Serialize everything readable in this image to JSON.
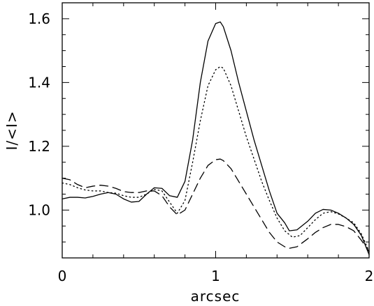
{
  "chart_data": {
    "type": "line",
    "title": "",
    "xlabel": "arcsec",
    "ylabel": "I/<I>",
    "xlim": [
      0,
      2
    ],
    "ylim": [
      0.85,
      1.65
    ],
    "grid": false,
    "legend": "none",
    "x_ticks": [
      {
        "value": 0,
        "label": "0"
      },
      {
        "value": 1,
        "label": "1"
      },
      {
        "value": 2,
        "label": "2"
      }
    ],
    "y_ticks": [
      {
        "value": 1.0,
        "label": "1.0"
      },
      {
        "value": 1.2,
        "label": "1.2"
      },
      {
        "value": 1.4,
        "label": "1.4"
      },
      {
        "value": 1.6,
        "label": "1.6"
      }
    ],
    "x_minor_step": 0.2,
    "y_minor_step": 0.05,
    "series": [
      {
        "style": "solid",
        "color": "#000000",
        "points": [
          [
            0.0,
            1.035
          ],
          [
            0.05,
            1.04
          ],
          [
            0.1,
            1.04
          ],
          [
            0.15,
            1.038
          ],
          [
            0.2,
            1.043
          ],
          [
            0.25,
            1.05
          ],
          [
            0.3,
            1.055
          ],
          [
            0.35,
            1.05
          ],
          [
            0.4,
            1.035
          ],
          [
            0.45,
            1.025
          ],
          [
            0.5,
            1.027
          ],
          [
            0.55,
            1.05
          ],
          [
            0.6,
            1.07
          ],
          [
            0.65,
            1.068
          ],
          [
            0.7,
            1.045
          ],
          [
            0.75,
            1.04
          ],
          [
            0.8,
            1.09
          ],
          [
            0.85,
            1.22
          ],
          [
            0.9,
            1.4
          ],
          [
            0.95,
            1.53
          ],
          [
            1.0,
            1.585
          ],
          [
            1.03,
            1.59
          ],
          [
            1.05,
            1.575
          ],
          [
            1.1,
            1.5
          ],
          [
            1.15,
            1.4
          ],
          [
            1.2,
            1.31
          ],
          [
            1.25,
            1.22
          ],
          [
            1.3,
            1.14
          ],
          [
            1.35,
            1.06
          ],
          [
            1.4,
            0.99
          ],
          [
            1.45,
            0.96
          ],
          [
            1.48,
            0.935
          ],
          [
            1.53,
            0.938
          ],
          [
            1.6,
            0.965
          ],
          [
            1.65,
            0.99
          ],
          [
            1.7,
            1.002
          ],
          [
            1.75,
            1.0
          ],
          [
            1.8,
            0.99
          ],
          [
            1.85,
            0.975
          ],
          [
            1.9,
            0.955
          ],
          [
            1.95,
            0.92
          ],
          [
            2.0,
            0.86
          ]
        ]
      },
      {
        "style": "dotted",
        "color": "#000000",
        "points": [
          [
            0.0,
            1.085
          ],
          [
            0.05,
            1.08
          ],
          [
            0.1,
            1.07
          ],
          [
            0.15,
            1.063
          ],
          [
            0.2,
            1.06
          ],
          [
            0.25,
            1.06
          ],
          [
            0.3,
            1.055
          ],
          [
            0.35,
            1.053
          ],
          [
            0.4,
            1.045
          ],
          [
            0.45,
            1.04
          ],
          [
            0.5,
            1.04
          ],
          [
            0.55,
            1.05
          ],
          [
            0.6,
            1.065
          ],
          [
            0.65,
            1.06
          ],
          [
            0.7,
            1.025
          ],
          [
            0.75,
            0.99
          ],
          [
            0.8,
            1.03
          ],
          [
            0.85,
            1.15
          ],
          [
            0.9,
            1.28
          ],
          [
            0.95,
            1.39
          ],
          [
            1.0,
            1.44
          ],
          [
            1.03,
            1.45
          ],
          [
            1.05,
            1.445
          ],
          [
            1.1,
            1.39
          ],
          [
            1.15,
            1.31
          ],
          [
            1.2,
            1.23
          ],
          [
            1.25,
            1.16
          ],
          [
            1.3,
            1.09
          ],
          [
            1.35,
            1.03
          ],
          [
            1.4,
            0.975
          ],
          [
            1.45,
            0.935
          ],
          [
            1.5,
            0.915
          ],
          [
            1.55,
            0.92
          ],
          [
            1.6,
            0.945
          ],
          [
            1.65,
            0.97
          ],
          [
            1.7,
            0.99
          ],
          [
            1.75,
            0.995
          ],
          [
            1.8,
            0.988
          ],
          [
            1.85,
            0.975
          ],
          [
            1.9,
            0.96
          ],
          [
            1.95,
            0.925
          ],
          [
            2.0,
            0.87
          ]
        ]
      },
      {
        "style": "dashed",
        "color": "#000000",
        "points": [
          [
            0.0,
            1.1
          ],
          [
            0.05,
            1.095
          ],
          [
            0.1,
            1.08
          ],
          [
            0.15,
            1.07
          ],
          [
            0.2,
            1.075
          ],
          [
            0.25,
            1.078
          ],
          [
            0.3,
            1.075
          ],
          [
            0.35,
            1.068
          ],
          [
            0.4,
            1.058
          ],
          [
            0.45,
            1.055
          ],
          [
            0.5,
            1.055
          ],
          [
            0.55,
            1.06
          ],
          [
            0.6,
            1.06
          ],
          [
            0.65,
            1.045
          ],
          [
            0.7,
            1.01
          ],
          [
            0.75,
            0.985
          ],
          [
            0.8,
            1.0
          ],
          [
            0.85,
            1.05
          ],
          [
            0.9,
            1.1
          ],
          [
            0.95,
            1.14
          ],
          [
            1.0,
            1.158
          ],
          [
            1.03,
            1.16
          ],
          [
            1.05,
            1.155
          ],
          [
            1.1,
            1.13
          ],
          [
            1.15,
            1.09
          ],
          [
            1.2,
            1.05
          ],
          [
            1.25,
            1.01
          ],
          [
            1.3,
            0.97
          ],
          [
            1.35,
            0.93
          ],
          [
            1.4,
            0.9
          ],
          [
            1.45,
            0.885
          ],
          [
            1.48,
            0.88
          ],
          [
            1.53,
            0.885
          ],
          [
            1.6,
            0.91
          ],
          [
            1.65,
            0.93
          ],
          [
            1.7,
            0.945
          ],
          [
            1.75,
            0.955
          ],
          [
            1.8,
            0.955
          ],
          [
            1.85,
            0.948
          ],
          [
            1.9,
            0.935
          ],
          [
            1.95,
            0.905
          ],
          [
            2.0,
            0.87
          ]
        ]
      }
    ]
  }
}
